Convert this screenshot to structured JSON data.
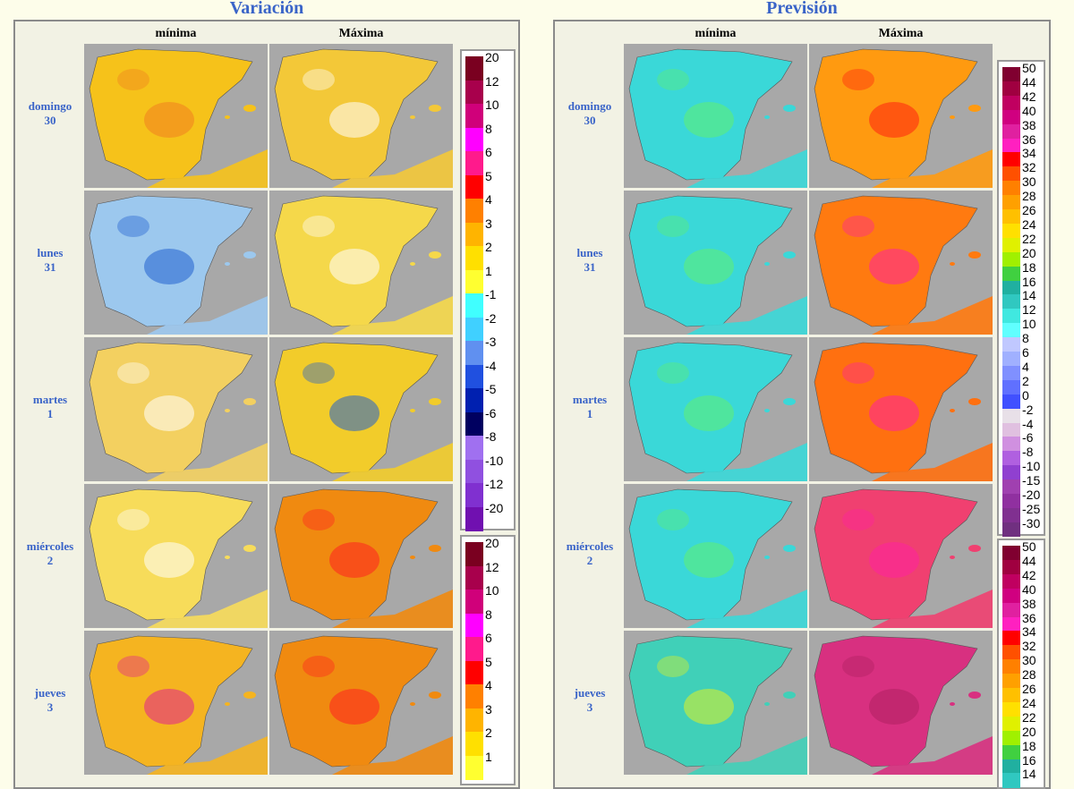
{
  "variacion": {
    "title": "Variación",
    "columns": [
      "mínima",
      "Máxima"
    ],
    "rows": [
      {
        "day": "domingo",
        "date": "30"
      },
      {
        "day": "lunes",
        "date": "31"
      },
      {
        "day": "martes",
        "date": "1"
      },
      {
        "day": "miércoles",
        "date": "2"
      },
      {
        "day": "jueves",
        "date": "3"
      }
    ],
    "legends": [
      [
        {
          "label": "20",
          "color": "#7a0020"
        },
        {
          "label": "12",
          "color": "#a8004c"
        },
        {
          "label": "10",
          "color": "#d0007a"
        },
        {
          "label": "8",
          "color": "#ff00ff"
        },
        {
          "label": "6",
          "color": "#ff1a8c"
        },
        {
          "label": "5",
          "color": "#ff0000"
        },
        {
          "label": "4",
          "color": "#ff8000"
        },
        {
          "label": "3",
          "color": "#ffb400"
        },
        {
          "label": "2",
          "color": "#ffe000"
        },
        {
          "label": "1",
          "color": "#ffff30"
        },
        {
          "label": "-1",
          "color": "#40ffff"
        },
        {
          "label": "-2",
          "color": "#40d0ff"
        },
        {
          "label": "-3",
          "color": "#6090f0"
        },
        {
          "label": "-4",
          "color": "#2050e0"
        },
        {
          "label": "-5",
          "color": "#0020b0"
        },
        {
          "label": "-6",
          "color": "#000060"
        },
        {
          "label": "-8",
          "color": "#a070f0"
        },
        {
          "label": "-10",
          "color": "#9050e0"
        },
        {
          "label": "-12",
          "color": "#8030d0"
        },
        {
          "label": "-20",
          "color": "#7010b0"
        }
      ],
      [
        {
          "label": "20",
          "color": "#7a0020"
        },
        {
          "label": "12",
          "color": "#a8004c"
        },
        {
          "label": "10",
          "color": "#d0007a"
        },
        {
          "label": "8",
          "color": "#ff00ff"
        },
        {
          "label": "6",
          "color": "#ff1a8c"
        },
        {
          "label": "5",
          "color": "#ff0000"
        },
        {
          "label": "4",
          "color": "#ff8000"
        },
        {
          "label": "3",
          "color": "#ffb400"
        },
        {
          "label": "2",
          "color": "#ffe000"
        },
        {
          "label": "1",
          "color": "#ffff30"
        }
      ]
    ]
  },
  "prevision": {
    "title": "Previsión",
    "columns": [
      "mínima",
      "Máxima"
    ],
    "rows": [
      {
        "day": "domingo",
        "date": "30"
      },
      {
        "day": "lunes",
        "date": "31"
      },
      {
        "day": "martes",
        "date": "1"
      },
      {
        "day": "miércoles",
        "date": "2"
      },
      {
        "day": "jueves",
        "date": "3"
      }
    ],
    "legends": [
      [
        {
          "label": "50",
          "color": "#800030"
        },
        {
          "label": "44",
          "color": "#a00040"
        },
        {
          "label": "42",
          "color": "#c00060"
        },
        {
          "label": "40",
          "color": "#d00080"
        },
        {
          "label": "38",
          "color": "#e020a0"
        },
        {
          "label": "36",
          "color": "#ff20c0"
        },
        {
          "label": "34",
          "color": "#ff0000"
        },
        {
          "label": "32",
          "color": "#ff5000"
        },
        {
          "label": "30",
          "color": "#ff8000"
        },
        {
          "label": "28",
          "color": "#ffa000"
        },
        {
          "label": "26",
          "color": "#ffc000"
        },
        {
          "label": "24",
          "color": "#ffe000"
        },
        {
          "label": "22",
          "color": "#e0f000"
        },
        {
          "label": "20",
          "color": "#a0f000"
        },
        {
          "label": "18",
          "color": "#40d040"
        },
        {
          "label": "16",
          "color": "#20b0a0"
        },
        {
          "label": "14",
          "color": "#30c8c0"
        },
        {
          "label": "12",
          "color": "#40e8e0"
        },
        {
          "label": "10",
          "color": "#60ffff"
        },
        {
          "label": "8",
          "color": "#c0c8ff"
        },
        {
          "label": "6",
          "color": "#a0b0ff"
        },
        {
          "label": "4",
          "color": "#8090ff"
        },
        {
          "label": "2",
          "color": "#6070ff"
        },
        {
          "label": "0",
          "color": "#4050ff"
        },
        {
          "label": "-2",
          "color": "#e8e0e8"
        },
        {
          "label": "-4",
          "color": "#e0c0e0"
        },
        {
          "label": "-6",
          "color": "#d090e0"
        },
        {
          "label": "-8",
          "color": "#b060e0"
        },
        {
          "label": "-10",
          "color": "#9040d0"
        },
        {
          "label": "-15",
          "color": "#a040b0"
        },
        {
          "label": "-20",
          "color": "#9030a0"
        },
        {
          "label": "-25",
          "color": "#803090"
        },
        {
          "label": "-30",
          "color": "#703080"
        }
      ],
      [
        {
          "label": "50",
          "color": "#800030"
        },
        {
          "label": "44",
          "color": "#a00040"
        },
        {
          "label": "42",
          "color": "#c00060"
        },
        {
          "label": "40",
          "color": "#d00080"
        },
        {
          "label": "38",
          "color": "#e020a0"
        },
        {
          "label": "36",
          "color": "#ff20c0"
        },
        {
          "label": "34",
          "color": "#ff0000"
        },
        {
          "label": "32",
          "color": "#ff5000"
        },
        {
          "label": "30",
          "color": "#ff8000"
        },
        {
          "label": "28",
          "color": "#ffa000"
        },
        {
          "label": "26",
          "color": "#ffc000"
        },
        {
          "label": "24",
          "color": "#ffe000"
        },
        {
          "label": "22",
          "color": "#e0f000"
        },
        {
          "label": "20",
          "color": "#a0f000"
        },
        {
          "label": "18",
          "color": "#40d040"
        },
        {
          "label": "16",
          "color": "#20b0a0"
        },
        {
          "label": "14",
          "color": "#30c8c0"
        }
      ]
    ]
  }
}
